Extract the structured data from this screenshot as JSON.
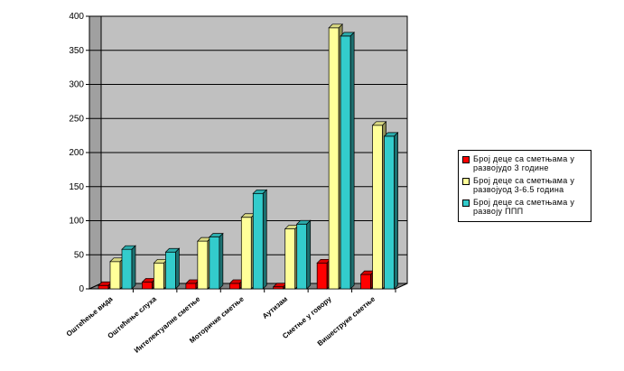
{
  "chart_data": {
    "type": "bar",
    "categories": [
      "Оштећење вида",
      "Оштећење слуха",
      "Интелектуалне сметње",
      "Моторичке сметње",
      "Аутизам",
      "Сметње у говору",
      "Вишеструке сметње"
    ],
    "series": [
      {
        "name": "Број деце са сметњама у развоју до 3 године",
        "color": "#ff0000",
        "values": [
          5,
          10,
          8,
          8,
          3,
          38,
          21
        ]
      },
      {
        "name": "Број деце са сметњама у развоју од 3-6.5 година",
        "color": "#ffff99",
        "values": [
          40,
          38,
          70,
          105,
          88,
          383,
          240
        ]
      },
      {
        "name": "Број деце са сметњама у развоју ППП",
        "color": "#33cccc",
        "values": [
          58,
          54,
          76,
          140,
          95,
          371,
          224
        ]
      }
    ],
    "ylim": [
      0,
      400
    ],
    "yticks": [
      0,
      50,
      100,
      150,
      200,
      250,
      300,
      350,
      400
    ],
    "grid": true,
    "legend_position": "right",
    "legend_labels": [
      "Број деце са сметњама у развојудо 3 године",
      "Број деце са сметњама у развојуод 3-6.5 година",
      "Број деце са сметњама у развоју ППП"
    ]
  }
}
